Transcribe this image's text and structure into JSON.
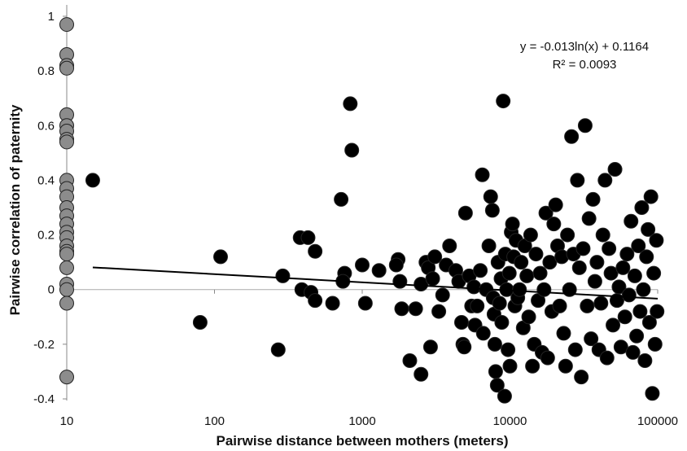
{
  "chart_data": {
    "type": "scatter",
    "xlabel": "Pairwise distance between mothers (meters)",
    "ylabel": "Pairwise correlation of paternity",
    "xscale": "log",
    "xlim": [
      10,
      100000
    ],
    "ylim": [
      -0.4,
      1
    ],
    "xticks": [
      10,
      100,
      1000,
      10000,
      100000
    ],
    "xtick_labels": [
      "10",
      "100",
      "1000",
      "10000",
      "100000"
    ],
    "yticks": [
      -0.4,
      -0.2,
      0,
      0.2,
      0.4,
      0.6,
      0.8,
      1
    ],
    "ytick_labels": [
      "-0.4",
      "-0.2",
      "0",
      "0.2",
      "0.4",
      "0.6",
      "0.8",
      "1"
    ],
    "grid": false,
    "legend": "none",
    "colors": {
      "zero_distance": "#8c8c8c",
      "pairs": "#000000",
      "trend": "#000000"
    },
    "series": [
      {
        "color": "#8c8c8c",
        "points": [
          [
            10,
            0.97
          ],
          [
            10,
            0.86
          ],
          [
            10,
            0.82
          ],
          [
            10,
            0.81
          ],
          [
            10,
            0.64
          ],
          [
            10,
            0.6
          ],
          [
            10,
            0.58
          ],
          [
            10,
            0.55
          ],
          [
            10,
            0.54
          ],
          [
            10,
            0.4
          ],
          [
            10,
            0.37
          ],
          [
            10,
            0.34
          ],
          [
            10,
            0.3
          ],
          [
            10,
            0.27
          ],
          [
            10,
            0.24
          ],
          [
            10,
            0.21
          ],
          [
            10,
            0.19
          ],
          [
            10,
            0.16
          ],
          [
            10,
            0.14
          ],
          [
            10,
            0.13
          ],
          [
            10,
            0.08
          ],
          [
            10,
            0.02
          ],
          [
            10,
            0.0
          ],
          [
            10,
            -0.05
          ],
          [
            10,
            -0.32
          ]
        ]
      },
      {
        "color": "#000000",
        "points": [
          [
            15,
            0.4
          ],
          [
            80,
            -0.12
          ],
          [
            110,
            0.12
          ],
          [
            270,
            -0.22
          ],
          [
            290,
            0.05
          ],
          [
            380,
            0.19
          ],
          [
            430,
            0.19
          ],
          [
            480,
            0.14
          ],
          [
            390,
            0.0
          ],
          [
            450,
            -0.01
          ],
          [
            480,
            -0.04
          ],
          [
            630,
            -0.05
          ],
          [
            720,
            0.33
          ],
          [
            760,
            0.06
          ],
          [
            740,
            0.03
          ],
          [
            830,
            0.68
          ],
          [
            850,
            0.51
          ],
          [
            1000,
            0.09
          ],
          [
            1050,
            -0.05
          ],
          [
            1300,
            0.07
          ],
          [
            1750,
            0.11
          ],
          [
            1700,
            0.09
          ],
          [
            1800,
            0.03
          ],
          [
            1850,
            -0.07
          ],
          [
            2100,
            -0.26
          ],
          [
            2300,
            -0.07
          ],
          [
            2500,
            0.02
          ],
          [
            2500,
            -0.31
          ],
          [
            2700,
            0.1
          ],
          [
            2800,
            0.08
          ],
          [
            2900,
            -0.21
          ],
          [
            3000,
            0.04
          ],
          [
            3100,
            0.12
          ],
          [
            3300,
            -0.08
          ],
          [
            3500,
            -0.02
          ],
          [
            3700,
            0.09
          ],
          [
            3900,
            0.16
          ],
          [
            4300,
            0.07
          ],
          [
            4500,
            0.03
          ],
          [
            4700,
            -0.12
          ],
          [
            4800,
            -0.2
          ],
          [
            4900,
            -0.21
          ],
          [
            5000,
            0.28
          ],
          [
            5300,
            0.05
          ],
          [
            5500,
            -0.06
          ],
          [
            5700,
            0.01
          ],
          [
            5800,
            -0.13
          ],
          [
            6000,
            -0.06
          ],
          [
            6300,
            0.07
          ],
          [
            6500,
            0.42
          ],
          [
            6600,
            -0.16
          ],
          [
            6900,
            0.0
          ],
          [
            7200,
            0.16
          ],
          [
            7400,
            0.34
          ],
          [
            7600,
            0.29
          ],
          [
            7700,
            -0.03
          ],
          [
            7800,
            -0.09
          ],
          [
            7900,
            -0.2
          ],
          [
            8000,
            -0.3
          ],
          [
            8200,
            -0.35
          ],
          [
            8300,
            0.1
          ],
          [
            8500,
            -0.05
          ],
          [
            8700,
            0.04
          ],
          [
            8800,
            -0.12
          ],
          [
            9000,
            0.69
          ],
          [
            9200,
            -0.39
          ],
          [
            9300,
            0.13
          ],
          [
            9500,
            0.0
          ],
          [
            9700,
            -0.22
          ],
          [
            9900,
            0.06
          ],
          [
            10000,
            -0.28
          ],
          [
            10200,
            0.21
          ],
          [
            10400,
            0.24
          ],
          [
            10600,
            0.12
          ],
          [
            10800,
            -0.06
          ],
          [
            11000,
            0.18
          ],
          [
            11300,
            -0.03
          ],
          [
            11600,
            0.0
          ],
          [
            11900,
            0.1
          ],
          [
            12300,
            -0.14
          ],
          [
            12600,
            0.16
          ],
          [
            13000,
            0.05
          ],
          [
            13400,
            -0.1
          ],
          [
            13800,
            0.2
          ],
          [
            14200,
            -0.28
          ],
          [
            14600,
            -0.2
          ],
          [
            15000,
            0.13
          ],
          [
            15500,
            -0.04
          ],
          [
            16000,
            0.06
          ],
          [
            16500,
            -0.23
          ],
          [
            17000,
            0.0
          ],
          [
            17500,
            0.28
          ],
          [
            18000,
            -0.25
          ],
          [
            18600,
            0.1
          ],
          [
            19200,
            -0.08
          ],
          [
            19800,
            0.24
          ],
          [
            20400,
            0.31
          ],
          [
            21000,
            0.16
          ],
          [
            21700,
            -0.06
          ],
          [
            22400,
            0.12
          ],
          [
            23100,
            -0.16
          ],
          [
            23800,
            -0.28
          ],
          [
            24500,
            0.2
          ],
          [
            25300,
            0.0
          ],
          [
            26100,
            0.56
          ],
          [
            26900,
            0.13
          ],
          [
            27700,
            -0.22
          ],
          [
            28600,
            0.4
          ],
          [
            29500,
            0.08
          ],
          [
            30400,
            -0.32
          ],
          [
            31300,
            0.15
          ],
          [
            32300,
            0.6
          ],
          [
            33300,
            -0.06
          ],
          [
            34300,
            0.26
          ],
          [
            35400,
            -0.18
          ],
          [
            36500,
            0.33
          ],
          [
            37600,
            0.03
          ],
          [
            38800,
            0.1
          ],
          [
            40000,
            -0.22
          ],
          [
            41300,
            -0.05
          ],
          [
            42600,
            0.2
          ],
          [
            44000,
            0.4
          ],
          [
            45400,
            -0.25
          ],
          [
            46800,
            0.15
          ],
          [
            48300,
            0.06
          ],
          [
            49800,
            -0.13
          ],
          [
            51400,
            0.44
          ],
          [
            53000,
            -0.04
          ],
          [
            54700,
            0.01
          ],
          [
            56400,
            -0.21
          ],
          [
            58200,
            0.08
          ],
          [
            60000,
            -0.1
          ],
          [
            62000,
            0.13
          ],
          [
            64000,
            -0.02
          ],
          [
            66000,
            0.25
          ],
          [
            68000,
            -0.23
          ],
          [
            70000,
            0.05
          ],
          [
            72000,
            -0.17
          ],
          [
            74000,
            0.16
          ],
          [
            76000,
            -0.08
          ],
          [
            78000,
            0.3
          ],
          [
            80000,
            0.0
          ],
          [
            82000,
            -0.26
          ],
          [
            84000,
            0.12
          ],
          [
            86000,
            0.22
          ],
          [
            88000,
            -0.12
          ],
          [
            90000,
            0.34
          ],
          [
            92000,
            -0.38
          ],
          [
            94000,
            0.06
          ],
          [
            96000,
            -0.2
          ],
          [
            98000,
            0.18
          ],
          [
            99000,
            -0.08
          ]
        ]
      }
    ],
    "trendline": {
      "equation": "y = -0.013ln(x) + 0.1164",
      "r2": "R² = 0.0093",
      "slope": -0.013,
      "intercept": 0.1164,
      "x_start": 15,
      "x_end": 100000
    }
  }
}
